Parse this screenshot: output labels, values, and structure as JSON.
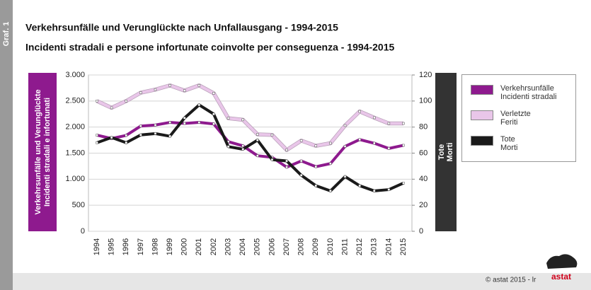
{
  "chart_data": {
    "type": "line",
    "figure_label": "Graf. 1",
    "title": "Verkehrsunfälle und Verunglückte nach Unfallausgang - 1994-2015",
    "subtitle": "Incidenti stradali e persone infortunate coinvolte per conseguenza - 1994-2015",
    "ylabel": [
      "Verkehrsunfälle und Verunglückte",
      "Incidenti stradali e infortunati"
    ],
    "y2label": [
      "Tote",
      "Morti"
    ],
    "source": "© astat 2015 - lr",
    "logo": "astat",
    "categories": [
      "1994",
      "1995",
      "1996",
      "1997",
      "1998",
      "1999",
      "2000",
      "2001",
      "2002",
      "2003",
      "2004",
      "2005",
      "2006",
      "2007",
      "2008",
      "2009",
      "2010",
      "2011",
      "2012",
      "2013",
      "2014",
      "2015"
    ],
    "ylim": [
      0,
      3000
    ],
    "yticks": [
      0,
      500,
      {
        "value": 1000,
        "label": "1.000"
      },
      {
        "value": 1500,
        "label": "1.500"
      },
      {
        "value": 2000,
        "label": "2.000"
      },
      {
        "value": 2500,
        "label": "2.500"
      },
      {
        "value": 3000,
        "label": "3.000"
      }
    ],
    "y2lim": [
      0,
      120
    ],
    "y2ticks": [
      0,
      20,
      40,
      60,
      80,
      100,
      120
    ],
    "grid": true,
    "series": [
      {
        "name": "Verkehrsunfälle\nIncidenti stradali",
        "color": "#8e1a8e",
        "values": [
          1845,
          1780,
          1840,
          2020,
          2040,
          2090,
          2070,
          2090,
          2060,
          1720,
          1640,
          1450,
          1420,
          1230,
          1350,
          1240,
          1300,
          1630,
          1760,
          1690,
          1590,
          1650
        ]
      },
      {
        "name": "Verletzte\nFeriti",
        "color": "#e9c6e9",
        "values": [
          2500,
          2370,
          2500,
          2660,
          2720,
          2800,
          2700,
          2800,
          2650,
          2170,
          2140,
          1860,
          1850,
          1560,
          1740,
          1640,
          1690,
          2030,
          2300,
          2180,
          2070,
          2070
        ]
      },
      {
        "name": "Tote\nMorti",
        "color": "#1a1a1a",
        "axis": "y2",
        "values": [
          68,
          72,
          68,
          74,
          75,
          73,
          87,
          97,
          90,
          65,
          63,
          70,
          55,
          54,
          43,
          35,
          31,
          42,
          35,
          31,
          32,
          37
        ]
      }
    ]
  }
}
